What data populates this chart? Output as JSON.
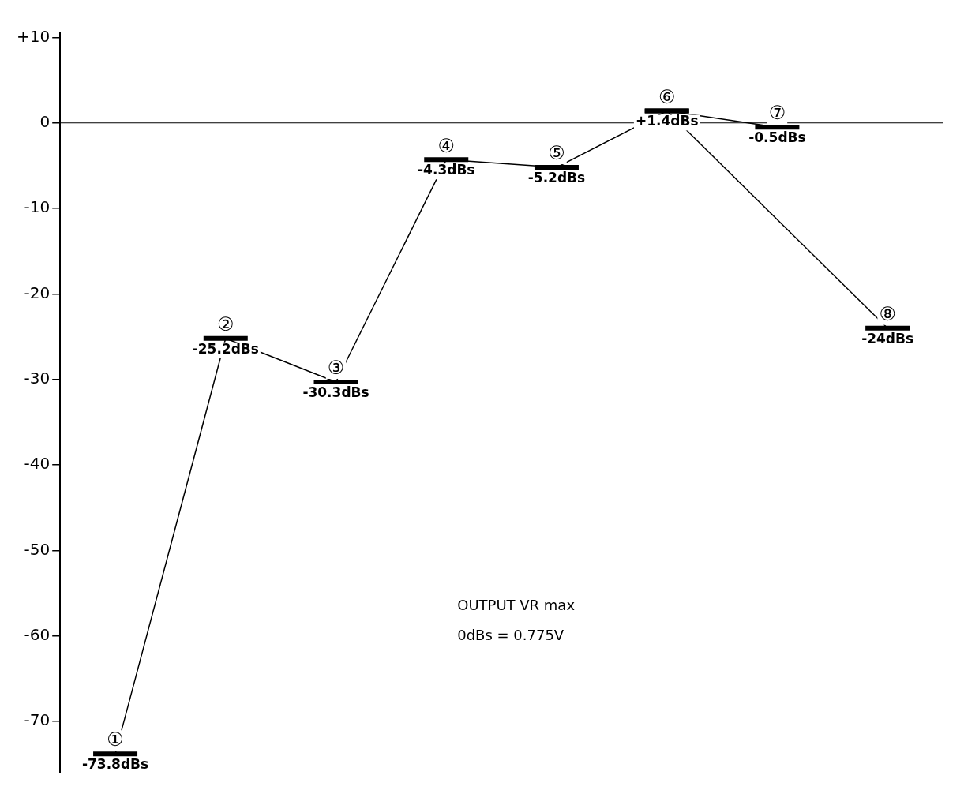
{
  "chart_data": {
    "type": "line",
    "categories": [
      "①",
      "②",
      "③",
      "④",
      "⑤",
      "⑥",
      "⑦",
      "⑧"
    ],
    "series": [
      {
        "color": "#000000",
        "values": [
          -73.8,
          -25.2,
          -30.3,
          -4.3,
          -5.2,
          1.4,
          -0.5,
          null
        ],
        "value_labels": [
          "-73.8dBs",
          "-25.2dBs",
          "-30.3dBs",
          "-4.3dBs",
          "-5.2dBs",
          "+1.4dBs",
          "-0.5dBs",
          null
        ]
      },
      {
        "color": "#000000",
        "values": [
          null,
          null,
          null,
          null,
          null,
          1.4,
          null,
          -24
        ],
        "value_labels": [
          null,
          null,
          null,
          null,
          null,
          null,
          null,
          "-24dBs"
        ]
      }
    ],
    "ylim": [
      -76,
      10.5
    ],
    "yticks": [
      {
        "value": 10,
        "label": "+10"
      },
      0,
      -10,
      -20,
      -30,
      -40,
      -50,
      -60,
      -70
    ],
    "ref_lines": [
      {
        "axis": "y",
        "value": 0,
        "color": "#000000"
      }
    ],
    "annotations": [
      "OUTPUT VR max",
      "0dBs = 0.775V"
    ],
    "tick_labels": "y",
    "grid": false,
    "legend": false
  }
}
